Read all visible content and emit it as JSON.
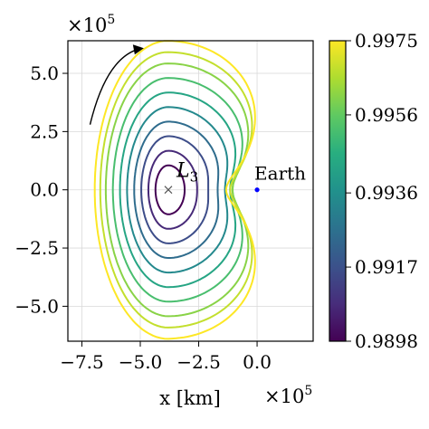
{
  "chart_data": {
    "type": "contour",
    "title": "",
    "xlabel": "x [km]",
    "ylabel": "",
    "x_multiplier": "×10",
    "x_multiplier_exp": "5",
    "y_multiplier": "×10",
    "y_multiplier_exp": "5",
    "xlim": [
      -8.1,
      2.4
    ],
    "ylim": [
      -6.5,
      6.4
    ],
    "x_ticks": [
      -7.5,
      -5.0,
      -2.5,
      0.0
    ],
    "x_tick_labels": [
      "−7.5",
      "−5.0",
      "−2.5",
      "0.0"
    ],
    "y_ticks": [
      5.0,
      2.5,
      0.0,
      -2.5,
      -5.0
    ],
    "y_tick_labels": [
      "5.0",
      "2.5",
      "0.0",
      "−2.5",
      "−5.0"
    ],
    "grid": true,
    "colormap": "viridis",
    "colorbar": {
      "vmin": 0.9898,
      "vmax": 0.9975,
      "tick_values": [
        0.9975,
        0.9956,
        0.9936,
        0.9917,
        0.9898
      ],
      "tick_labels": [
        "0.9975",
        "0.9956",
        "0.9936",
        "0.9917",
        "0.9898"
      ]
    },
    "levels": [
      0.9898,
      0.9907,
      0.9916,
      0.9925,
      0.9934,
      0.9943,
      0.9952,
      0.9961,
      0.9968,
      0.9975
    ],
    "points": [
      {
        "label": "L",
        "sub": "3",
        "x": -3.8,
        "y": 0.0,
        "marker": "x"
      },
      {
        "label": "Earth",
        "x": 0.0,
        "y": 0.0,
        "marker": "dot",
        "color": "#0000ff"
      }
    ],
    "annotations": [
      {
        "type": "arrow",
        "direction": "clockwise"
      }
    ]
  }
}
